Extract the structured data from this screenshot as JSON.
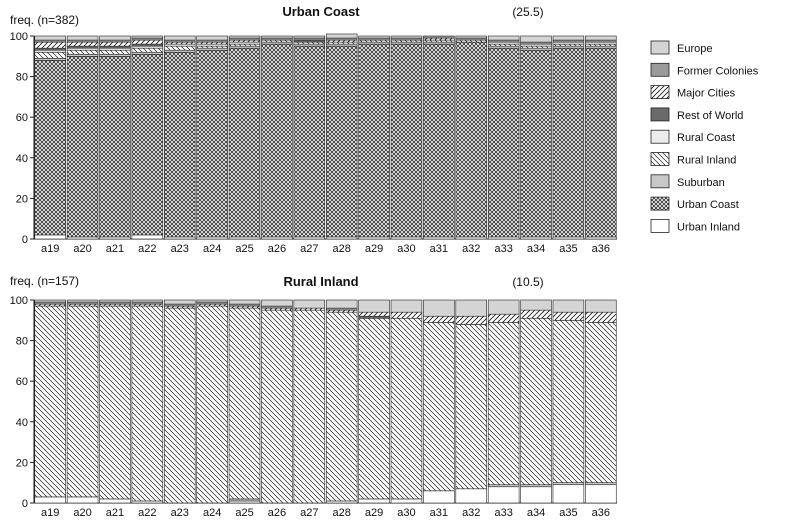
{
  "legend": [
    {
      "key": "europe",
      "label": "Europe",
      "color": "#d4d4d4",
      "pattern": "solid"
    },
    {
      "key": "former",
      "label": "Former Colonies",
      "color": "#9a9a9a",
      "pattern": "solid"
    },
    {
      "key": "major",
      "label": "Major Cities",
      "color": "#ffffff",
      "pattern": "diag-wide"
    },
    {
      "key": "rest",
      "label": "Rest of World",
      "color": "#6a6a6a",
      "pattern": "solid"
    },
    {
      "key": "ruralcoast",
      "label": "Rural Coast",
      "color": "#ececec",
      "pattern": "solid"
    },
    {
      "key": "ruralinland",
      "label": "Rural Inland",
      "color": "#ffffff",
      "pattern": "diag-back"
    },
    {
      "key": "suburban",
      "label": "Suburban",
      "color": "#c8c8c8",
      "pattern": "solid"
    },
    {
      "key": "urbancoast",
      "label": "Urban Coast",
      "color": "#ffffff",
      "pattern": "crosshatch"
    },
    {
      "key": "urbaninland",
      "label": "Urban Inland",
      "color": "#ffffff",
      "pattern": "solid"
    }
  ],
  "chart_data": [
    {
      "type": "bar",
      "stacked": true,
      "title": "Urban Coast",
      "subtitle": "(25.5)",
      "ylabel": "freq. (n=382)",
      "ylim": [
        0,
        100
      ],
      "yticks": [
        0,
        20,
        40,
        60,
        80,
        100
      ],
      "categories": [
        "a19",
        "a20",
        "a21",
        "a22",
        "a23",
        "a24",
        "a25",
        "a26",
        "a27",
        "a28",
        "a29",
        "a30",
        "a31",
        "a32",
        "a33",
        "a34",
        "a35",
        "a36"
      ],
      "series": [
        {
          "name": "Urban Inland",
          "values": [
            2,
            1,
            1,
            2,
            1,
            1,
            1,
            1,
            1,
            1,
            1,
            1,
            1,
            1,
            1,
            1,
            1,
            1
          ]
        },
        {
          "name": "Urban Coast",
          "values": [
            86,
            89,
            89,
            89,
            91,
            92,
            93,
            95,
            94,
            94,
            95,
            95,
            95,
            96,
            93,
            92,
            93,
            93
          ]
        },
        {
          "name": "Suburban",
          "values": [
            1,
            1,
            1,
            1,
            1,
            1,
            1,
            1,
            1,
            1,
            1,
            1,
            1,
            0,
            1,
            1,
            1,
            1
          ]
        },
        {
          "name": "Rural Inland",
          "values": [
            3,
            2,
            2,
            2,
            2,
            1,
            1,
            1,
            1,
            1,
            1,
            1,
            1,
            1,
            1,
            1,
            1,
            1
          ]
        },
        {
          "name": "Rural Coast",
          "values": [
            1,
            1,
            1,
            1,
            1,
            1,
            1,
            0,
            0,
            0,
            0,
            0,
            0,
            0,
            1,
            1,
            1,
            1
          ]
        },
        {
          "name": "Rest of World",
          "values": [
            1,
            1,
            1,
            1,
            0,
            0,
            0,
            0,
            1,
            0,
            0,
            0,
            0,
            0,
            0,
            0,
            0,
            0
          ]
        },
        {
          "name": "Major Cities",
          "values": [
            3,
            2,
            2,
            2,
            1,
            1,
            1,
            0,
            0,
            1,
            0,
            0,
            1,
            0,
            0,
            0,
            0,
            0
          ]
        },
        {
          "name": "Former Colonies",
          "values": [
            1,
            1,
            1,
            1,
            1,
            1,
            1,
            1,
            1,
            1,
            1,
            1,
            1,
            1,
            1,
            1,
            1,
            1
          ]
        },
        {
          "name": "Europe",
          "values": [
            2,
            2,
            2,
            1,
            2,
            2,
            1,
            1,
            1,
            2,
            1,
            1,
            0,
            1,
            2,
            3,
            2,
            2
          ]
        }
      ]
    },
    {
      "type": "bar",
      "stacked": true,
      "title": "Rural Inland",
      "subtitle": "(10.5)",
      "ylabel": "freq. (n=157)",
      "ylim": [
        0,
        100
      ],
      "yticks": [
        0,
        20,
        40,
        60,
        80,
        100
      ],
      "categories": [
        "a19",
        "a20",
        "a21",
        "a22",
        "a23",
        "a24",
        "a25",
        "a26",
        "a27",
        "a28",
        "a29",
        "a30",
        "a31",
        "a32",
        "a33",
        "a34",
        "a35",
        "a36"
      ],
      "series": [
        {
          "name": "Urban Inland",
          "values": [
            3,
            3,
            2,
            1,
            0,
            0,
            1,
            0,
            0,
            1,
            2,
            2,
            6,
            7,
            8,
            8,
            9,
            9
          ]
        },
        {
          "name": "Urban Coast",
          "values": [
            0,
            0,
            0,
            0,
            0,
            0,
            0,
            0,
            0,
            0,
            0,
            0,
            0,
            0,
            0,
            0,
            0,
            0
          ]
        },
        {
          "name": "Suburban",
          "values": [
            0,
            0,
            0,
            0,
            0,
            0,
            1,
            0,
            0,
            0,
            0,
            0,
            0,
            0,
            1,
            1,
            1,
            1
          ]
        },
        {
          "name": "Rural Inland",
          "values": [
            94,
            94,
            95,
            96,
            96,
            97,
            94,
            95,
            95,
            93,
            89,
            89,
            83,
            81,
            80,
            82,
            80,
            79
          ]
        },
        {
          "name": "Rural Coast",
          "values": [
            0,
            0,
            0,
            0,
            0,
            0,
            0,
            0,
            0,
            0,
            0,
            0,
            0,
            0,
            0,
            0,
            0,
            0
          ]
        },
        {
          "name": "Rest of World",
          "values": [
            0,
            0,
            0,
            0,
            0,
            0,
            0,
            0,
            0,
            0,
            1,
            0,
            0,
            0,
            0,
            0,
            0,
            0
          ]
        },
        {
          "name": "Major Cities",
          "values": [
            1,
            1,
            1,
            1,
            1,
            1,
            1,
            1,
            1,
            1,
            2,
            3,
            3,
            4,
            4,
            4,
            4,
            5
          ]
        },
        {
          "name": "Former Colonies",
          "values": [
            1,
            1,
            1,
            1,
            1,
            1,
            1,
            1,
            0,
            1,
            0,
            0,
            0,
            0,
            0,
            0,
            0,
            0
          ]
        },
        {
          "name": "Europe",
          "values": [
            1,
            1,
            1,
            1,
            2,
            1,
            2,
            3,
            4,
            4,
            6,
            6,
            8,
            8,
            7,
            5,
            6,
            6
          ]
        }
      ]
    }
  ]
}
